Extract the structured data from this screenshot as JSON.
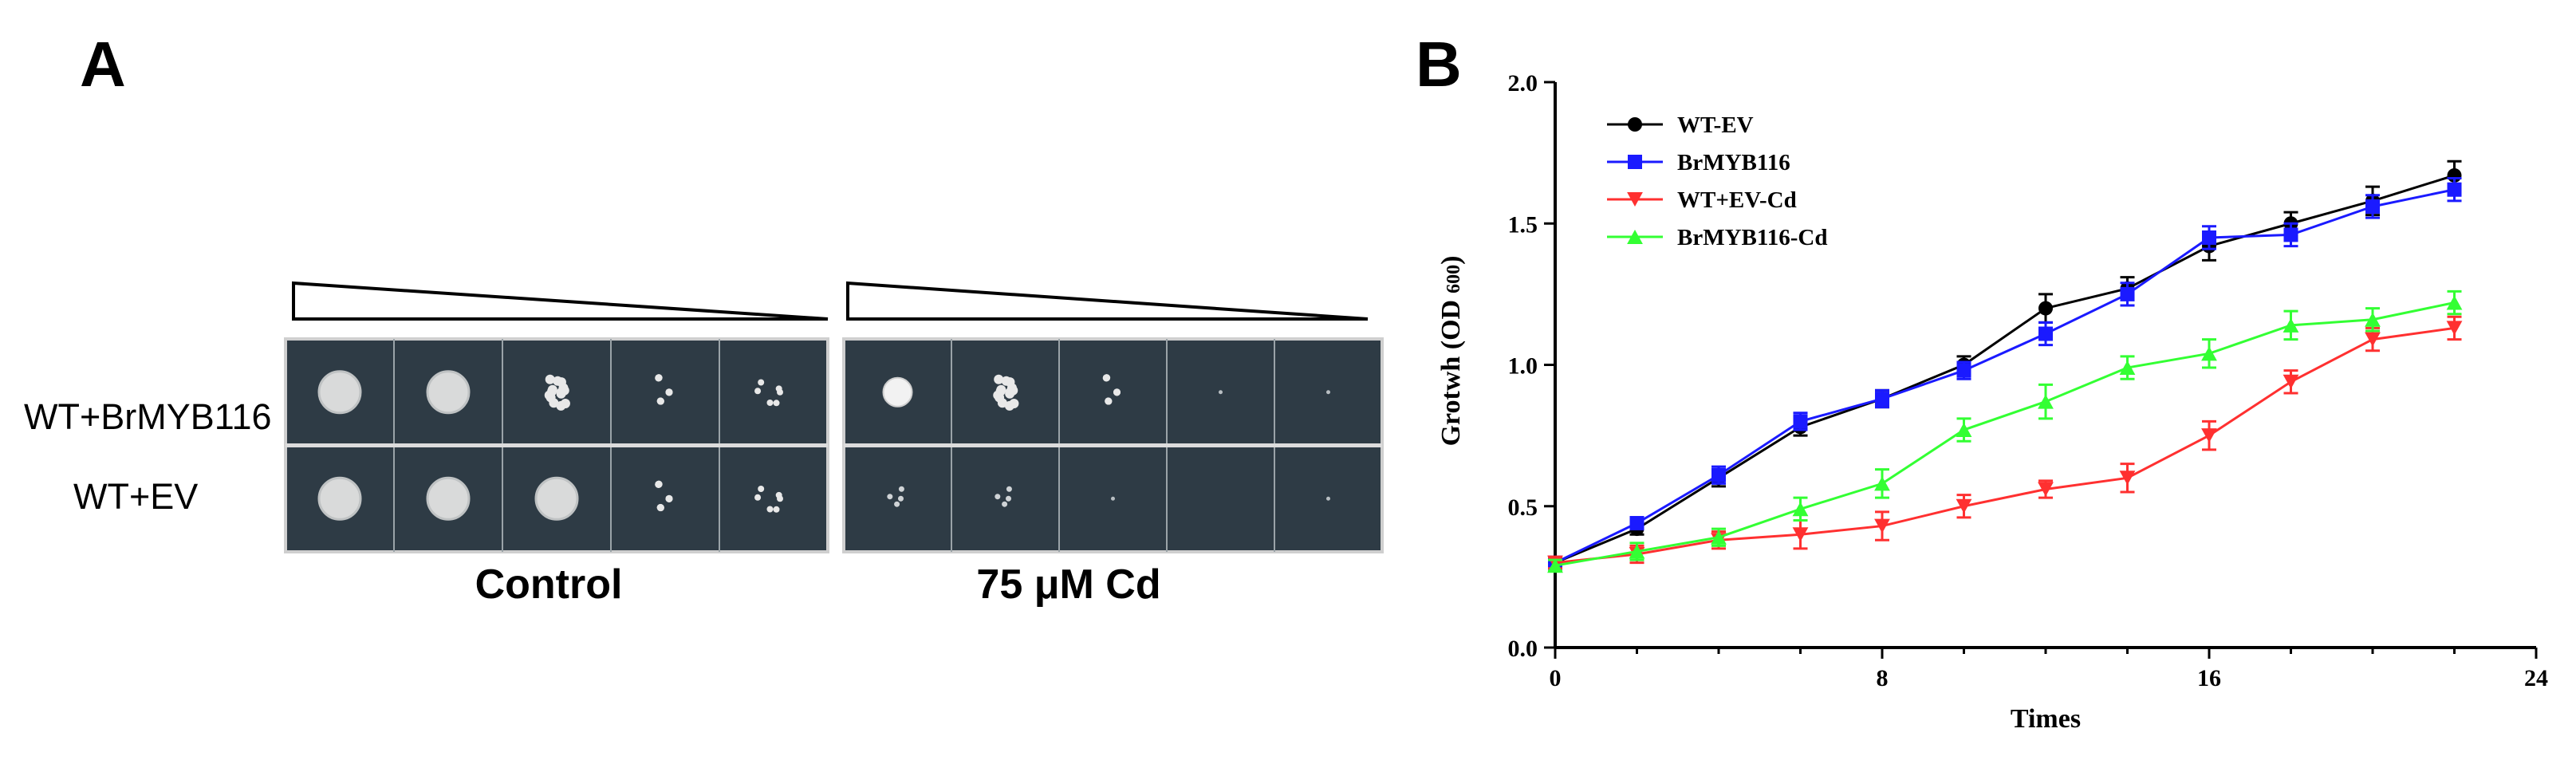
{
  "panel_a": {
    "label": "A",
    "row_labels": [
      "WT+BrMYB116",
      "WT+EV"
    ],
    "plates": [
      {
        "caption": "Control",
        "spots": [
          [
            "large-white",
            "large-white",
            "colony-dense",
            "colony-cluster",
            "colony-sparse"
          ],
          [
            "large-white",
            "large-white",
            "large-white",
            "colony-cluster",
            "colony-sparse"
          ]
        ]
      },
      {
        "caption": "75 μM Cd",
        "spots": [
          [
            "medium-white",
            "colony-dense",
            "colony-cluster",
            "trace",
            "trace"
          ],
          [
            "colony-faint",
            "colony-faint",
            "trace",
            "none",
            "trace"
          ]
        ]
      }
    ],
    "colors": {
      "plate": "#2e3b45",
      "plate_edge": "#dcdcdc",
      "colony": "#e8e8e8"
    }
  },
  "panel_b": {
    "label": "B",
    "chart_data": {
      "type": "line",
      "xlabel": "Times",
      "ylabel": "Grotwh (OD",
      "ylabel_subscript": "600",
      "ylabel_close": ")",
      "xlim": [
        0,
        24
      ],
      "ylim": [
        0.0,
        2.0
      ],
      "xticks": [
        0,
        8,
        16,
        24
      ],
      "yticks": [
        0.0,
        0.5,
        1.0,
        1.5,
        2.0
      ],
      "ytick_labels": [
        "0.0",
        "0.5",
        "1.0",
        "1.5",
        "2.0"
      ],
      "legend_position": "top-left",
      "x": [
        0,
        2,
        4,
        6,
        8,
        10,
        12,
        14,
        16,
        18,
        20,
        22
      ],
      "series": [
        {
          "name": "WT-EV",
          "color": "#000000",
          "marker": "circle",
          "values": [
            0.3,
            0.42,
            0.6,
            0.78,
            0.88,
            1.0,
            1.2,
            1.27,
            1.42,
            1.5,
            1.58,
            1.67
          ],
          "errors": [
            0.02,
            0.02,
            0.03,
            0.03,
            0.03,
            0.03,
            0.05,
            0.04,
            0.05,
            0.04,
            0.05,
            0.05
          ]
        },
        {
          "name": "BrMYB116",
          "color": "#1a1aff",
          "marker": "square",
          "values": [
            0.3,
            0.44,
            0.61,
            0.8,
            0.88,
            0.98,
            1.11,
            1.25,
            1.45,
            1.46,
            1.56,
            1.62
          ],
          "errors": [
            0.02,
            0.02,
            0.03,
            0.03,
            0.03,
            0.03,
            0.04,
            0.04,
            0.04,
            0.04,
            0.04,
            0.04
          ]
        },
        {
          "name": "WT+EV-Cd",
          "color": "#ff3030",
          "marker": "triangle-down",
          "values": [
            0.3,
            0.33,
            0.38,
            0.4,
            0.43,
            0.5,
            0.56,
            0.6,
            0.75,
            0.94,
            1.09,
            1.13
          ],
          "errors": [
            0.02,
            0.03,
            0.03,
            0.05,
            0.05,
            0.04,
            0.03,
            0.05,
            0.05,
            0.04,
            0.04,
            0.04
          ]
        },
        {
          "name": "BrMYB116-Cd",
          "color": "#33ff33",
          "marker": "triangle-up",
          "values": [
            0.29,
            0.34,
            0.39,
            0.49,
            0.58,
            0.77,
            0.87,
            0.99,
            1.04,
            1.14,
            1.16,
            1.22
          ],
          "errors": [
            0.02,
            0.03,
            0.03,
            0.04,
            0.05,
            0.04,
            0.06,
            0.04,
            0.05,
            0.05,
            0.04,
            0.04
          ]
        }
      ]
    }
  }
}
